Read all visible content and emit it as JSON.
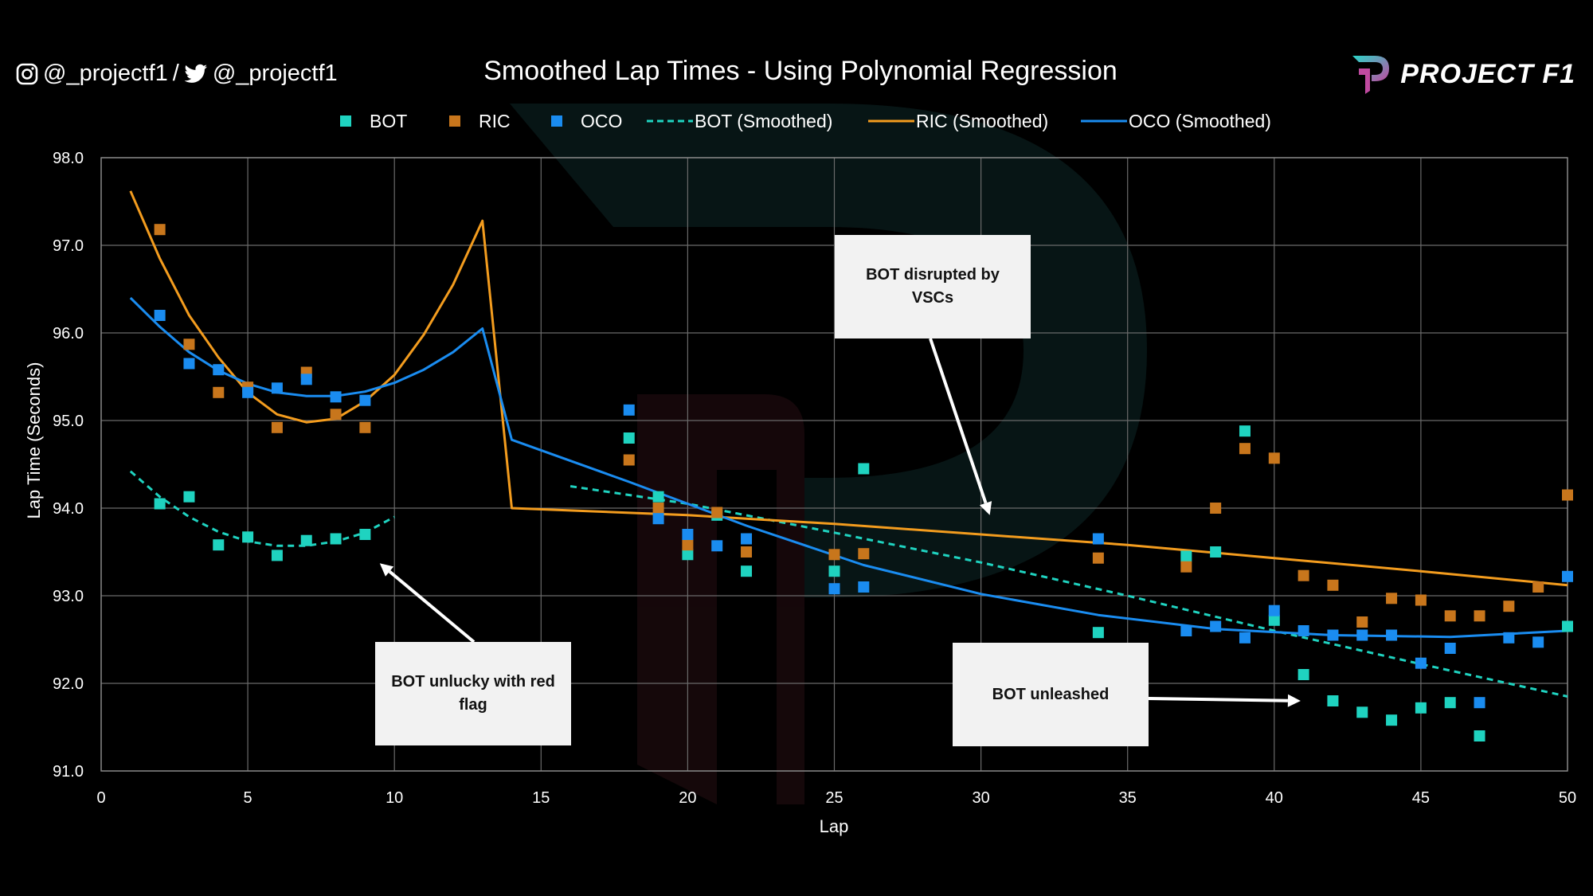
{
  "header": {
    "instagram_handle": "@_projectf1",
    "separator": "/",
    "twitter_handle": "@_projectf1",
    "brand": "PROJECT F1"
  },
  "colors": {
    "background": "#000000",
    "BOT": "#1fd3c0",
    "RIC": "#c8761c",
    "OCO": "#1a8cf0",
    "RIC_smoothed": "#f39c1e",
    "OCO_smoothed": "#1a8cf0",
    "BOT_smoothed": "#1fd3c0",
    "grid": "#6a6a6a"
  },
  "chart_data": {
    "type": "scatter",
    "title": "Smoothed Lap Times - Using Polynomial Regression",
    "xlabel": "Lap",
    "ylabel": "Lap Time (Seconds)",
    "xlim": [
      0,
      50
    ],
    "ylim": [
      91.0,
      98.0
    ],
    "xticks": [
      0,
      5,
      10,
      15,
      20,
      25,
      30,
      35,
      40,
      45,
      50
    ],
    "yticks": [
      91.0,
      92.0,
      93.0,
      94.0,
      95.0,
      96.0,
      97.0,
      98.0
    ],
    "grid": true,
    "legend_position": "top",
    "legend": [
      "BOT",
      "RIC",
      "OCO",
      "BOT (Smoothed)",
      "RIC (Smoothed)",
      "OCO (Smoothed)"
    ],
    "series": [
      {
        "name": "BOT",
        "kind": "points",
        "color_key": "BOT",
        "points": [
          [
            2,
            94.05
          ],
          [
            3,
            94.13
          ],
          [
            4,
            93.58
          ],
          [
            5,
            93.67
          ],
          [
            6,
            93.46
          ],
          [
            7,
            93.63
          ],
          [
            8,
            93.65
          ],
          [
            9,
            93.7
          ],
          [
            18,
            94.8
          ],
          [
            19,
            94.13
          ],
          [
            20,
            93.47
          ],
          [
            21,
            93.92
          ],
          [
            22,
            93.28
          ],
          [
            25,
            93.28
          ],
          [
            26,
            94.45
          ],
          [
            34,
            92.58
          ],
          [
            37,
            93.45
          ],
          [
            38,
            93.5
          ],
          [
            39,
            94.88
          ],
          [
            40,
            92.72
          ],
          [
            41,
            92.1
          ],
          [
            42,
            91.8
          ],
          [
            43,
            91.67
          ],
          [
            44,
            91.58
          ],
          [
            45,
            91.72
          ],
          [
            46,
            91.78
          ],
          [
            47,
            91.4
          ],
          [
            50,
            92.65
          ]
        ]
      },
      {
        "name": "RIC",
        "kind": "points",
        "color_key": "RIC",
        "points": [
          [
            2,
            97.18
          ],
          [
            3,
            95.87
          ],
          [
            4,
            95.32
          ],
          [
            5,
            95.38
          ],
          [
            6,
            94.92
          ],
          [
            7,
            95.55
          ],
          [
            8,
            95.07
          ],
          [
            9,
            94.92
          ],
          [
            18,
            94.55
          ],
          [
            19,
            94.0
          ],
          [
            20,
            93.58
          ],
          [
            21,
            93.95
          ],
          [
            22,
            93.5
          ],
          [
            25,
            93.47
          ],
          [
            26,
            93.48
          ],
          [
            34,
            93.43
          ],
          [
            37,
            93.33
          ],
          [
            38,
            94.0
          ],
          [
            39,
            94.68
          ],
          [
            40,
            94.57
          ],
          [
            41,
            93.23
          ],
          [
            42,
            93.12
          ],
          [
            43,
            92.7
          ],
          [
            44,
            92.97
          ],
          [
            45,
            92.95
          ],
          [
            46,
            92.77
          ],
          [
            47,
            92.77
          ],
          [
            48,
            92.88
          ],
          [
            49,
            93.1
          ],
          [
            50,
            94.15
          ]
        ]
      },
      {
        "name": "OCO",
        "kind": "points",
        "color_key": "OCO",
        "points": [
          [
            2,
            96.2
          ],
          [
            3,
            95.65
          ],
          [
            4,
            95.58
          ],
          [
            5,
            95.32
          ],
          [
            6,
            95.37
          ],
          [
            7,
            95.47
          ],
          [
            8,
            95.27
          ],
          [
            9,
            95.23
          ],
          [
            18,
            95.12
          ],
          [
            19,
            93.88
          ],
          [
            20,
            93.7
          ],
          [
            21,
            93.57
          ],
          [
            22,
            93.65
          ],
          [
            25,
            93.08
          ],
          [
            26,
            93.1
          ],
          [
            34,
            93.65
          ],
          [
            37,
            92.6
          ],
          [
            38,
            92.65
          ],
          [
            39,
            92.52
          ],
          [
            40,
            92.83
          ],
          [
            41,
            92.6
          ],
          [
            42,
            92.55
          ],
          [
            43,
            92.55
          ],
          [
            44,
            92.55
          ],
          [
            45,
            92.23
          ],
          [
            46,
            92.4
          ],
          [
            47,
            91.78
          ],
          [
            48,
            92.52
          ],
          [
            49,
            92.47
          ],
          [
            50,
            93.22
          ]
        ]
      },
      {
        "name": "BOT (Smoothed)",
        "kind": "line",
        "dashed": true,
        "color_key": "BOT_smoothed",
        "segments": [
          [
            [
              1,
              94.42
            ],
            [
              2,
              94.13
            ],
            [
              3,
              93.9
            ],
            [
              4,
              93.73
            ],
            [
              5,
              93.62
            ],
            [
              6,
              93.57
            ],
            [
              7,
              93.57
            ],
            [
              8,
              93.62
            ],
            [
              9,
              93.72
            ],
            [
              10,
              93.9
            ]
          ],
          [
            [
              16,
              94.25
            ],
            [
              20,
              94.05
            ],
            [
              25,
              93.72
            ],
            [
              30,
              93.38
            ],
            [
              35,
              93.0
            ],
            [
              40,
              92.6
            ],
            [
              45,
              92.22
            ],
            [
              50,
              91.85
            ]
          ]
        ]
      },
      {
        "name": "RIC (Smoothed)",
        "kind": "line",
        "dashed": false,
        "color_key": "RIC_smoothed",
        "segments": [
          [
            [
              1,
              97.62
            ],
            [
              2,
              96.85
            ],
            [
              3,
              96.2
            ],
            [
              4,
              95.72
            ],
            [
              5,
              95.32
            ],
            [
              6,
              95.07
            ],
            [
              7,
              94.98
            ],
            [
              8,
              95.02
            ],
            [
              9,
              95.22
            ],
            [
              10,
              95.52
            ],
            [
              11,
              95.98
            ],
            [
              12,
              96.55
            ],
            [
              13,
              97.28
            ],
            [
              14,
              94.0
            ],
            [
              20,
              93.92
            ],
            [
              25,
              93.82
            ],
            [
              30,
              93.7
            ],
            [
              35,
              93.58
            ],
            [
              40,
              93.43
            ],
            [
              45,
              93.28
            ],
            [
              50,
              93.12
            ]
          ]
        ]
      },
      {
        "name": "OCO (Smoothed)",
        "kind": "line",
        "dashed": false,
        "color_key": "OCO_smoothed",
        "segments": [
          [
            [
              1,
              96.4
            ],
            [
              2,
              96.07
            ],
            [
              3,
              95.78
            ],
            [
              4,
              95.57
            ],
            [
              5,
              95.42
            ],
            [
              6,
              95.32
            ],
            [
              7,
              95.28
            ],
            [
              8,
              95.28
            ],
            [
              9,
              95.33
            ],
            [
              10,
              95.43
            ],
            [
              11,
              95.58
            ],
            [
              12,
              95.78
            ],
            [
              13,
              96.05
            ],
            [
              14,
              94.78
            ],
            [
              18,
              94.3
            ],
            [
              22,
              93.8
            ],
            [
              26,
              93.35
            ],
            [
              30,
              93.02
            ],
            [
              34,
              92.78
            ],
            [
              38,
              92.62
            ],
            [
              42,
              92.55
            ],
            [
              46,
              92.53
            ],
            [
              50,
              92.6
            ]
          ]
        ]
      }
    ],
    "annotations": [
      {
        "text": "BOT unlucky with red flag",
        "arrow_to": [
          9.5,
          93.37
        ]
      },
      {
        "text": "BOT disrupted by VSCs",
        "arrow_to": [
          30.3,
          93.92
        ]
      },
      {
        "text": "BOT unleashed",
        "arrow_to": [
          40.9,
          91.8
        ]
      }
    ]
  }
}
